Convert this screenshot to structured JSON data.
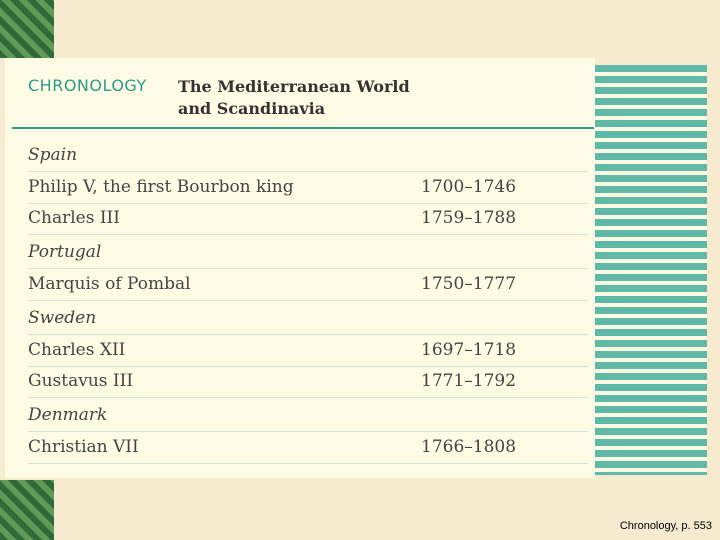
{
  "header": {
    "label": "CHRONOLOGY",
    "title": [
      "The Mediterranean World",
      "and Scandinavia"
    ]
  },
  "sections": [
    {
      "name": "Spain",
      "rows": [
        {
          "name": "Philip V, the first Bourbon king",
          "dates": "1700–1746"
        },
        {
          "name": "Charles III",
          "dates": "1759–1788"
        }
      ]
    },
    {
      "name": "Portugal",
      "rows": [
        {
          "name": "Marquis of Pombal",
          "dates": "1750–1777"
        }
      ]
    },
    {
      "name": "Sweden",
      "rows": [
        {
          "name": "Charles XII",
          "dates": "1697–1718"
        },
        {
          "name": "Gustavus III",
          "dates": "1771–1792"
        }
      ]
    },
    {
      "name": "Denmark",
      "rows": [
        {
          "name": "Christian VII",
          "dates": "1766–1808"
        }
      ]
    }
  ],
  "footer": "Chronology, p. 553"
}
